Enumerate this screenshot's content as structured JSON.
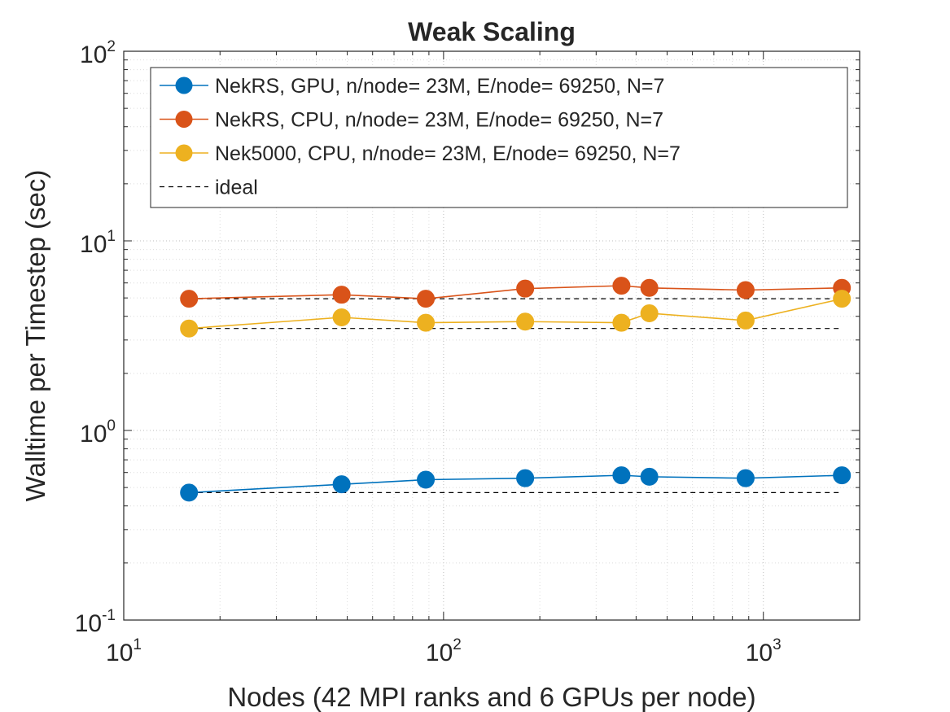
{
  "chart_data": {
    "type": "line",
    "title": "Weak Scaling",
    "xlabel": "Nodes (42 MPI ranks and 6 GPUs per node)",
    "ylabel": "Walltime per Timestep (sec)",
    "xscale": "log",
    "yscale": "log",
    "xlim": [
      10,
      2000
    ],
    "ylim": [
      0.1,
      100
    ],
    "x_ticks": [
      {
        "base": "10",
        "exp": "1"
      },
      {
        "base": "10",
        "exp": "2"
      },
      {
        "base": "10",
        "exp": "3"
      }
    ],
    "y_ticks": [
      {
        "base": "10",
        "exp": "-1"
      },
      {
        "base": "10",
        "exp": "0"
      },
      {
        "base": "10",
        "exp": "1"
      },
      {
        "base": "10",
        "exp": "2"
      }
    ],
    "grid": true,
    "legend_position": "top",
    "x": [
      16,
      48,
      88,
      180,
      360,
      440,
      880,
      1760
    ],
    "series": [
      {
        "name": "NekRS, GPU, n/node= 23M, E/node= 69250, N=7",
        "color": "#0072BD",
        "values": [
          0.47,
          0.52,
          0.55,
          0.56,
          0.58,
          0.57,
          0.56,
          0.58
        ]
      },
      {
        "name": "NekRS, CPU, n/node= 23M, E/node= 69250, N=7",
        "color": "#D95319",
        "values": [
          4.95,
          5.2,
          4.95,
          5.6,
          5.8,
          5.65,
          5.5,
          5.65
        ]
      },
      {
        "name": "Nek5000, CPU, n/node= 23M, E/node= 69250, N=7",
        "color": "#EDB120",
        "values": [
          3.45,
          3.95,
          3.7,
          3.75,
          3.7,
          4.15,
          3.8,
          4.95
        ]
      }
    ],
    "ideal": {
      "name": "ideal",
      "color": "#000000",
      "x_range": [
        16,
        1760
      ],
      "values": [
        0.47,
        4.95,
        3.45
      ]
    }
  }
}
